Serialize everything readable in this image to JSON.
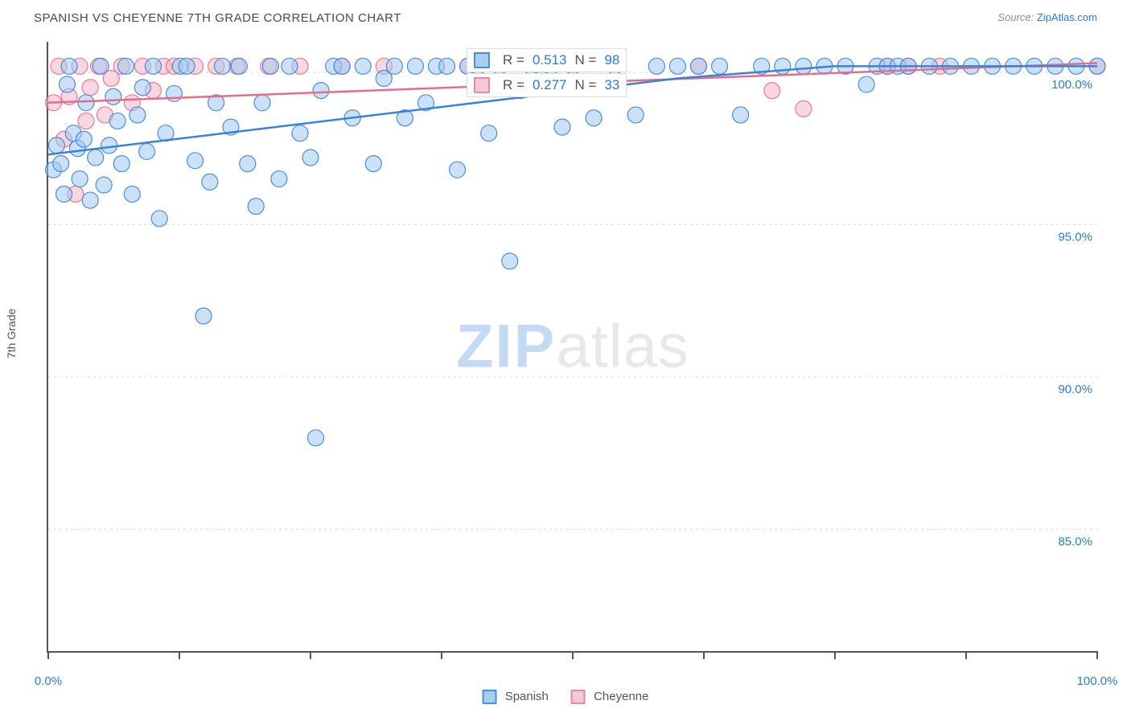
{
  "title": "SPANISH VS CHEYENNE 7TH GRADE CORRELATION CHART",
  "source_label": "Source:",
  "source_name": "ZipAtlas.com",
  "ylabel": "7th Grade",
  "watermark_a": "ZIP",
  "watermark_b": "atlas",
  "x_axis": {
    "min_label": "0.0%",
    "max_label": "100.0%"
  },
  "legend": {
    "series1": {
      "label": "Spanish",
      "fill": "#a8cdf3",
      "stroke": "#4a90d9"
    },
    "series2": {
      "label": "Cheyenne",
      "fill": "#f7c7d4",
      "stroke": "#e8899f"
    }
  },
  "stats": {
    "series1": {
      "R": "0.513",
      "N": "98"
    },
    "series2": {
      "R": "0.277",
      "N": "33"
    }
  },
  "chart": {
    "type": "scatter",
    "xlim": [
      0,
      100
    ],
    "ylim": [
      81,
      101
    ],
    "y_ticks": [
      85.0,
      90.0,
      95.0,
      100.0
    ],
    "y_tick_labels": [
      "85.0%",
      "90.0%",
      "95.0%",
      "100.0%"
    ],
    "x_ticks": [
      0,
      12.5,
      25,
      37.5,
      50,
      62.5,
      75,
      87.5,
      100
    ],
    "grid_color": "#d7dbe0",
    "grid_dash": "3,4",
    "point_radius": 10,
    "point_opacity": 0.55,
    "line_width": 2.5,
    "series1_color": "#3b82d6",
    "series1_fill": "#9fc8f0",
    "series2_color": "#e76c8b",
    "series2_fill": "#f4b7c8",
    "series1_trend": [
      [
        0,
        97.3
      ],
      [
        60,
        99.8
      ],
      [
        75,
        100.2
      ],
      [
        100,
        100.2
      ]
    ],
    "series2_trend": [
      [
        0,
        99.0
      ],
      [
        100,
        100.3
      ]
    ],
    "series1_points": [
      [
        0.5,
        96.8
      ],
      [
        0.8,
        97.6
      ],
      [
        1.2,
        97.0
      ],
      [
        1.5,
        96.0
      ],
      [
        1.8,
        99.6
      ],
      [
        2.0,
        100.2
      ],
      [
        2.4,
        98.0
      ],
      [
        2.8,
        97.5
      ],
      [
        3.0,
        96.5
      ],
      [
        3.4,
        97.8
      ],
      [
        3.6,
        99.0
      ],
      [
        4.0,
        95.8
      ],
      [
        4.5,
        97.2
      ],
      [
        5.0,
        100.2
      ],
      [
        5.3,
        96.3
      ],
      [
        5.8,
        97.6
      ],
      [
        6.2,
        99.2
      ],
      [
        6.6,
        98.4
      ],
      [
        7.0,
        97.0
      ],
      [
        7.4,
        100.2
      ],
      [
        8.0,
        96.0
      ],
      [
        8.5,
        98.6
      ],
      [
        9.0,
        99.5
      ],
      [
        9.4,
        97.4
      ],
      [
        10.0,
        100.2
      ],
      [
        10.6,
        95.2
      ],
      [
        11.2,
        98.0
      ],
      [
        12.0,
        99.3
      ],
      [
        12.6,
        100.2
      ],
      [
        13.2,
        100.2
      ],
      [
        14.0,
        97.1
      ],
      [
        14.8,
        92.0
      ],
      [
        15.4,
        96.4
      ],
      [
        16.0,
        99.0
      ],
      [
        16.6,
        100.2
      ],
      [
        17.4,
        98.2
      ],
      [
        18.2,
        100.2
      ],
      [
        19.0,
        97.0
      ],
      [
        19.8,
        95.6
      ],
      [
        20.4,
        99.0
      ],
      [
        21.2,
        100.2
      ],
      [
        22.0,
        96.5
      ],
      [
        23.0,
        100.2
      ],
      [
        24.0,
        98.0
      ],
      [
        25.0,
        97.2
      ],
      [
        25.5,
        88.0
      ],
      [
        26.0,
        99.4
      ],
      [
        27.2,
        100.2
      ],
      [
        28.0,
        100.2
      ],
      [
        29.0,
        98.5
      ],
      [
        30.0,
        100.2
      ],
      [
        31.0,
        97.0
      ],
      [
        32.0,
        99.8
      ],
      [
        33.0,
        100.2
      ],
      [
        34.0,
        98.5
      ],
      [
        35.0,
        100.2
      ],
      [
        36.0,
        99.0
      ],
      [
        37.0,
        100.2
      ],
      [
        38.0,
        100.2
      ],
      [
        39.0,
        96.8
      ],
      [
        40.0,
        100.2
      ],
      [
        41.0,
        100.2
      ],
      [
        42.0,
        98.0
      ],
      [
        43.0,
        100.2
      ],
      [
        44.0,
        93.8
      ],
      [
        45.0,
        99.4
      ],
      [
        46.0,
        100.2
      ],
      [
        47.0,
        100.2
      ],
      [
        48.0,
        100.2
      ],
      [
        49.0,
        98.2
      ],
      [
        50.0,
        100.2
      ],
      [
        52.0,
        98.5
      ],
      [
        54.0,
        100.2
      ],
      [
        56.0,
        98.6
      ],
      [
        58.0,
        100.2
      ],
      [
        60.0,
        100.2
      ],
      [
        62.0,
        100.2
      ],
      [
        64.0,
        100.2
      ],
      [
        66.0,
        98.6
      ],
      [
        68.0,
        100.2
      ],
      [
        70.0,
        100.2
      ],
      [
        72.0,
        100.2
      ],
      [
        74.0,
        100.2
      ],
      [
        76.0,
        100.2
      ],
      [
        78.0,
        99.6
      ],
      [
        79.0,
        100.2
      ],
      [
        80.0,
        100.2
      ],
      [
        81.0,
        100.2
      ],
      [
        82.0,
        100.2
      ],
      [
        84.0,
        100.2
      ],
      [
        86.0,
        100.2
      ],
      [
        88.0,
        100.2
      ],
      [
        90.0,
        100.2
      ],
      [
        92.0,
        100.2
      ],
      [
        94.0,
        100.2
      ],
      [
        96.0,
        100.2
      ],
      [
        98.0,
        100.2
      ],
      [
        100.0,
        100.2
      ]
    ],
    "series2_points": [
      [
        0.5,
        99.0
      ],
      [
        1.0,
        100.2
      ],
      [
        1.5,
        97.8
      ],
      [
        2.0,
        99.2
      ],
      [
        2.6,
        96.0
      ],
      [
        3.0,
        100.2
      ],
      [
        3.6,
        98.4
      ],
      [
        4.0,
        99.5
      ],
      [
        4.8,
        100.2
      ],
      [
        5.4,
        98.6
      ],
      [
        6.0,
        99.8
      ],
      [
        7.0,
        100.2
      ],
      [
        8.0,
        99.0
      ],
      [
        9.0,
        100.2
      ],
      [
        10.0,
        99.4
      ],
      [
        11.0,
        100.2
      ],
      [
        12.0,
        100.2
      ],
      [
        14.0,
        100.2
      ],
      [
        16.0,
        100.2
      ],
      [
        18.0,
        100.2
      ],
      [
        21.0,
        100.2
      ],
      [
        24.0,
        100.2
      ],
      [
        28.0,
        100.2
      ],
      [
        32.0,
        100.2
      ],
      [
        40.0,
        100.2
      ],
      [
        50.0,
        100.2
      ],
      [
        62.0,
        100.2
      ],
      [
        69.0,
        99.4
      ],
      [
        72.0,
        98.8
      ],
      [
        80.0,
        100.2
      ],
      [
        82.0,
        100.2
      ],
      [
        85.0,
        100.2
      ],
      [
        100.0,
        100.2
      ]
    ]
  }
}
